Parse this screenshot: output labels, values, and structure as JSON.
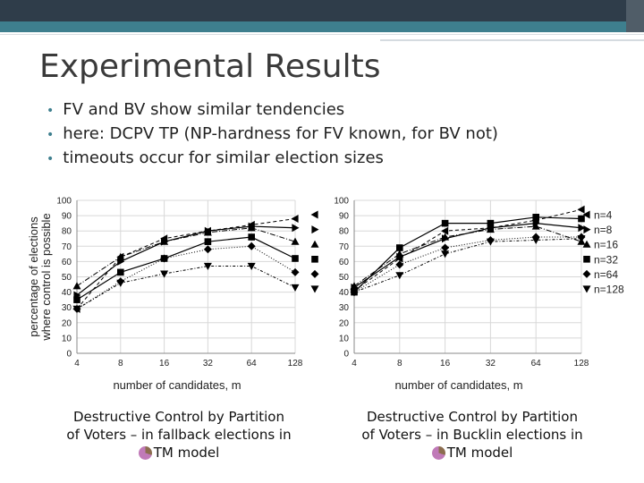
{
  "slide": {
    "title": "Experimental Results",
    "bullets": [
      "FV and BV show similar tendencies",
      "here: DCPV TP (NP-hardness for FV known, for BV not)",
      "timeouts occur for similar election sizes"
    ]
  },
  "colors": {
    "header_dark": "#2f3d4a",
    "header_accent": "#3e7f8e",
    "bullet": "#3e7f8e"
  },
  "chart_data": [
    {
      "type": "line",
      "ylabel": "percentage of elections where control is possible",
      "xlabel": "number of candidates, m",
      "x": [
        4,
        8,
        16,
        32,
        64,
        128
      ],
      "xscale": "log2",
      "ylim": [
        0,
        100
      ],
      "yticks": [
        0,
        10,
        20,
        30,
        40,
        50,
        60,
        70,
        80,
        90,
        100
      ],
      "grid": true,
      "caption_lines": [
        "Destructive Control by Partition",
        "of Voters – in fallback elections in",
        "TM model"
      ],
      "series": [
        {
          "values": [
            29,
            63,
            75,
            80,
            84,
            88
          ],
          "marker": "triangle-left"
        },
        {
          "values": [
            38,
            60,
            73,
            80,
            83,
            82
          ],
          "marker": "triangle-right"
        },
        {
          "values": [
            44,
            63,
            73,
            79,
            82,
            73
          ],
          "marker": "triangle-up"
        },
        {
          "values": [
            35,
            53,
            62,
            73,
            76,
            62
          ],
          "marker": "square"
        },
        {
          "values": [
            29,
            47,
            62,
            68,
            70,
            53
          ],
          "marker": "diamond"
        },
        {
          "values": [
            29,
            46,
            52,
            57,
            57,
            43
          ],
          "marker": "triangle-down"
        }
      ]
    },
    {
      "type": "line",
      "ylabel": "",
      "xlabel": "number of candidates, m",
      "x": [
        4,
        8,
        16,
        32,
        64,
        128
      ],
      "xscale": "log2",
      "ylim": [
        0,
        100
      ],
      "yticks": [
        0,
        10,
        20,
        30,
        40,
        50,
        60,
        70,
        80,
        90,
        100
      ],
      "grid": true,
      "legend_position": "right",
      "caption_lines": [
        "Destructive Control by Partition",
        "of Voters – in Bucklin elections in",
        "TM model"
      ],
      "series": [
        {
          "name": "n=4",
          "values": [
            41,
            62,
            80,
            82,
            87,
            94
          ],
          "marker": "triangle-left"
        },
        {
          "name": "n=8",
          "values": [
            43,
            63,
            75,
            82,
            85,
            82
          ],
          "marker": "triangle-right"
        },
        {
          "name": "n=16",
          "values": [
            44,
            65,
            76,
            81,
            83,
            73
          ],
          "marker": "triangle-up"
        },
        {
          "name": "n=32",
          "values": [
            40,
            69,
            85,
            85,
            89,
            88
          ],
          "marker": "square"
        },
        {
          "name": "n=64",
          "values": [
            40,
            58,
            69,
            74,
            76,
            76
          ],
          "marker": "diamond"
        },
        {
          "name": "n=128",
          "values": [
            40,
            51,
            65,
            73,
            74,
            75
          ],
          "marker": "triangle-down"
        }
      ]
    }
  ]
}
